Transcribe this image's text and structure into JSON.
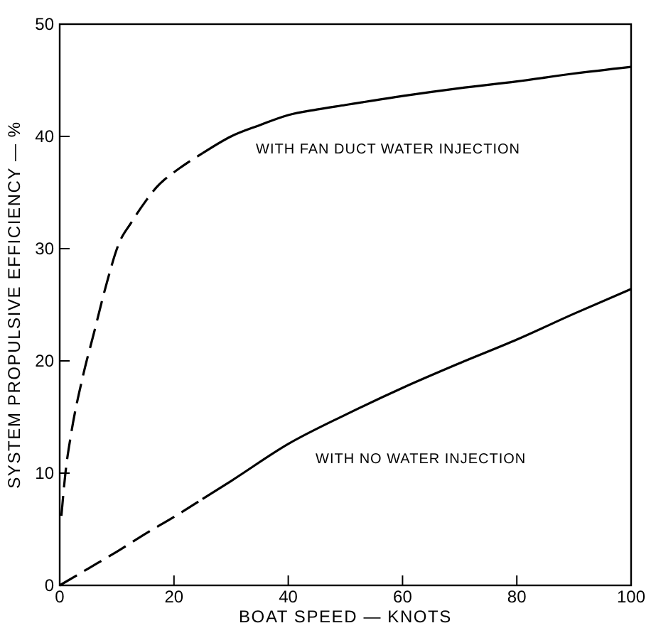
{
  "chart_data": {
    "type": "line",
    "xlabel": "BOAT SPEED — KNOTS",
    "ylabel": "SYSTEM PROPULSIVE EFFICIENCY — %",
    "xlim": [
      0,
      100
    ],
    "ylim": [
      0,
      50
    ],
    "xticks": [
      0,
      20,
      40,
      60,
      80,
      100
    ],
    "yticks": [
      0,
      10,
      20,
      30,
      40,
      50
    ],
    "grid": false,
    "marker": "none",
    "series": [
      {
        "color": "#000000",
        "line_style": "dashed",
        "x": [
          0.3,
          1,
          2,
          4,
          6,
          8,
          10.4,
          12.5,
          15,
          17,
          20,
          22.5,
          25
        ],
        "values": [
          6.2,
          10,
          13.5,
          18.5,
          22.5,
          26.5,
          30.5,
          32.3,
          34.2,
          35.5,
          36.8,
          37.7,
          38.5
        ]
      },
      {
        "color": "#000000",
        "line_style": "solid",
        "x": [
          25,
          30,
          35,
          40,
          45,
          50,
          60,
          70,
          80,
          90,
          100
        ],
        "values": [
          38.5,
          40,
          41,
          41.9,
          42.4,
          42.8,
          43.6,
          44.3,
          44.9,
          45.6,
          46.2
        ]
      },
      {
        "color": "#000000",
        "line_style": "dashed",
        "x": [
          0,
          5,
          10,
          15,
          20,
          25
        ],
        "values": [
          0,
          1.5,
          3,
          4.6,
          6.1,
          7.7
        ]
      },
      {
        "color": "#000000",
        "line_style": "solid",
        "x": [
          25,
          30,
          40,
          50,
          60,
          70,
          80,
          90,
          100
        ],
        "values": [
          7.7,
          9.3,
          12.6,
          15.2,
          17.6,
          19.8,
          21.9,
          24.2,
          26.4
        ]
      }
    ],
    "annotations": [
      "WITH FAN DUCT WATER INJECTION",
      "WITH NO WATER INJECTION"
    ]
  }
}
